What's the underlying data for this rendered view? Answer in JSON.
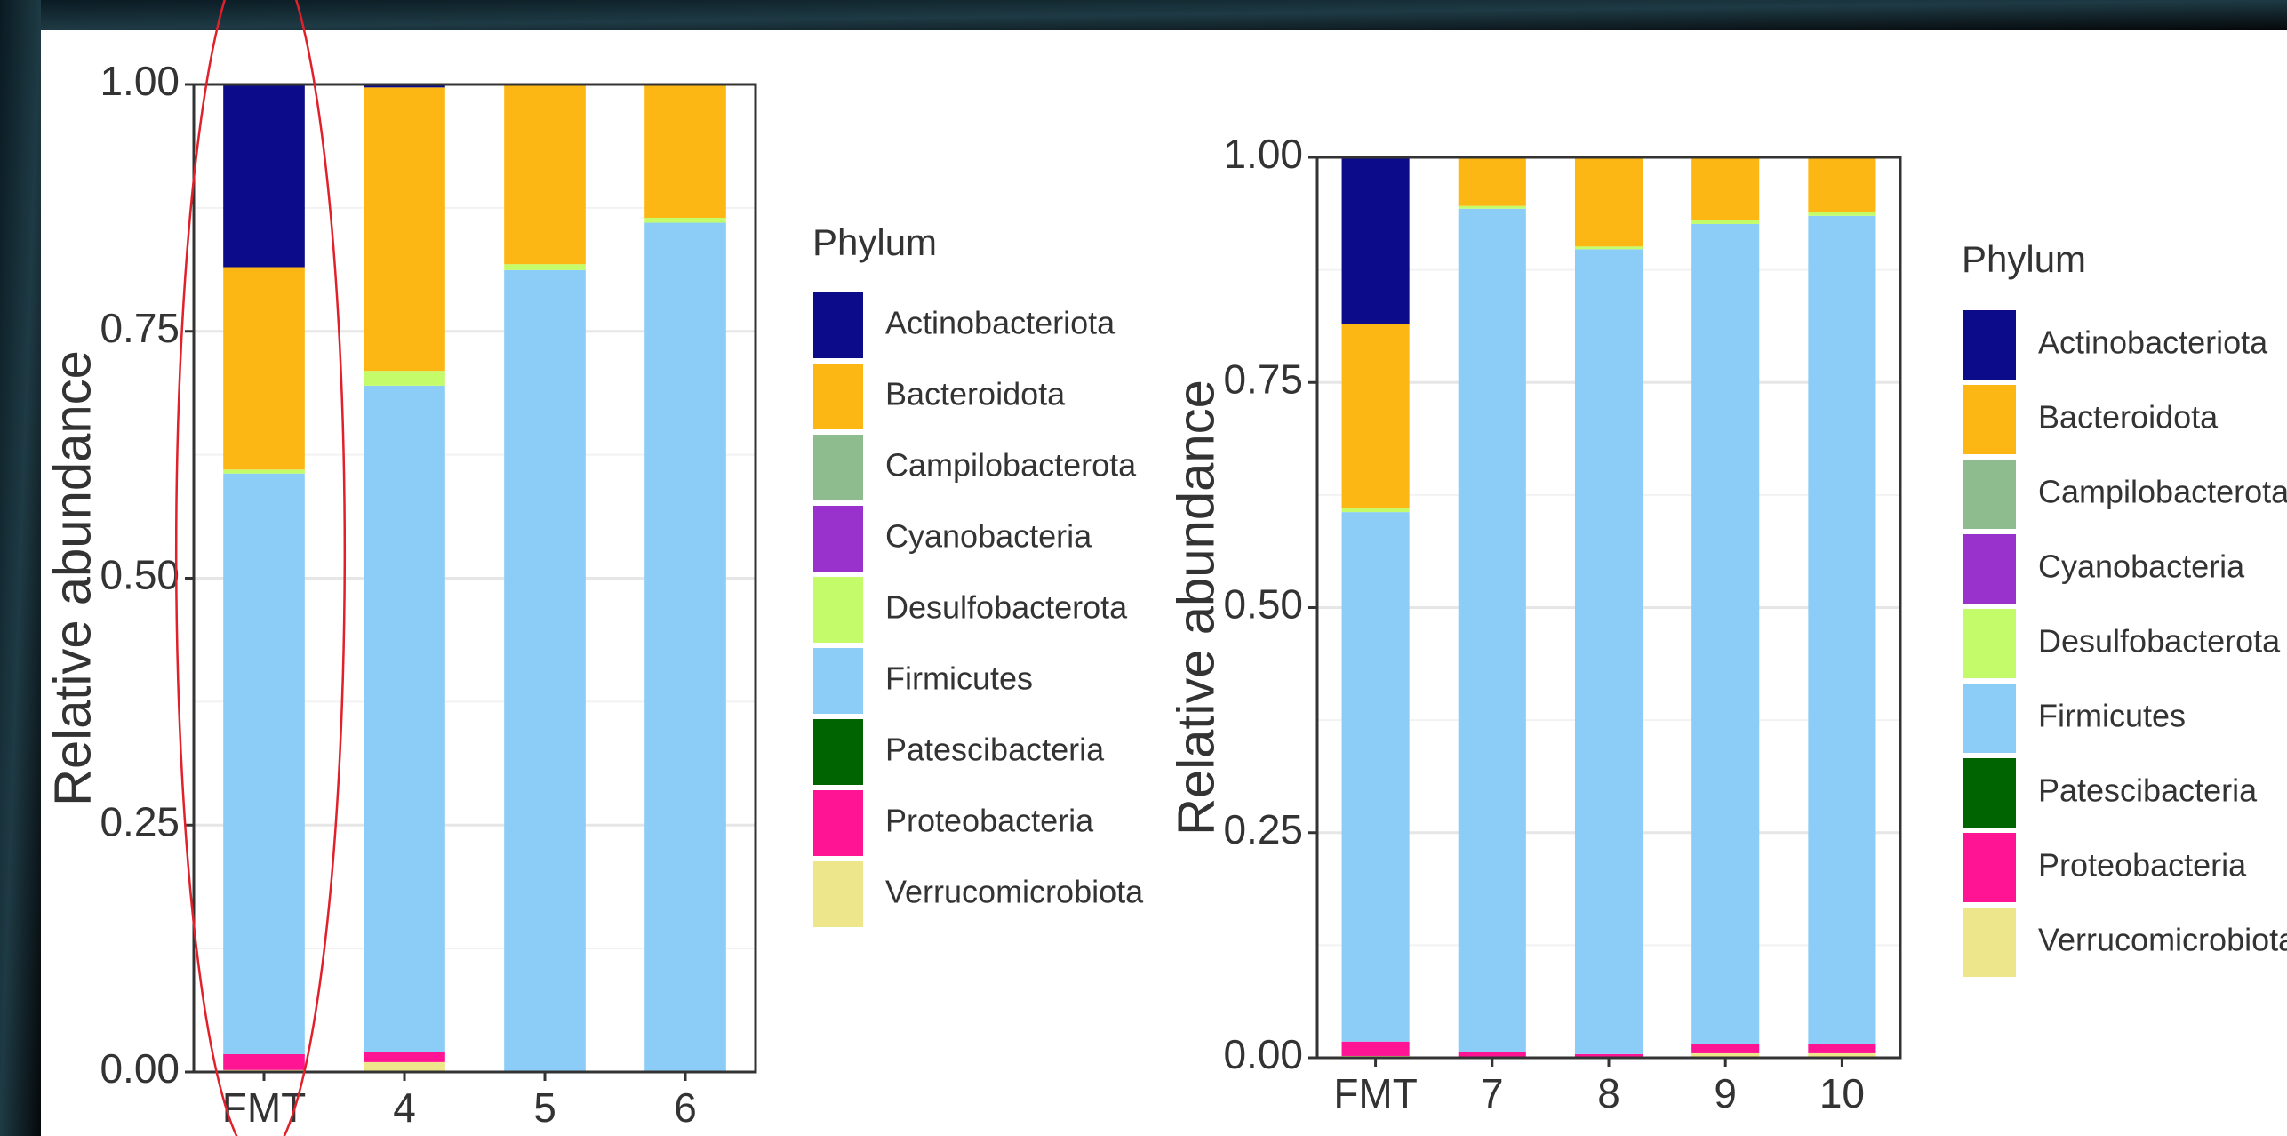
{
  "chart_data": [
    {
      "type": "bar",
      "stacked": true,
      "y_label": "Relative abundance",
      "legend_title": "Phylum",
      "grid": true,
      "categories": [
        "FMT",
        "4",
        "5",
        "6"
      ],
      "ylim": [
        0,
        1
      ],
      "yticks": [
        {
          "value": 0,
          "label": "0.00"
        },
        {
          "value": 0.25,
          "label": "0.25"
        },
        {
          "value": 0.5,
          "label": "0.50"
        },
        {
          "value": 0.75,
          "label": "0.75"
        },
        {
          "value": 1,
          "label": "1.00"
        }
      ],
      "series": [
        {
          "name": "Actinobacteriota",
          "color": "#0c0c8a",
          "values": [
            0.185,
            0.003,
            0,
            0
          ]
        },
        {
          "name": "Bacteroidota",
          "color": "#fdb714",
          "values": [
            0.205,
            0.287,
            0.182,
            0.135
          ]
        },
        {
          "name": "Campilobacterota",
          "color": "#8fbc8f",
          "values": [
            0,
            0,
            0,
            0
          ]
        },
        {
          "name": "Cyanobacteria",
          "color": "#9932cc",
          "values": [
            0,
            0,
            0,
            0
          ]
        },
        {
          "name": "Desulfobacterota",
          "color": "#c3fb6a",
          "values": [
            0.004,
            0.015,
            0.006,
            0.005
          ]
        },
        {
          "name": "Firmicutes",
          "color": "#8ccdf7",
          "values": [
            0.588,
            0.675,
            0.812,
            0.86
          ]
        },
        {
          "name": "Patescibacteria",
          "color": "#006400",
          "values": [
            0,
            0,
            0,
            0
          ]
        },
        {
          "name": "Proteobacteria",
          "color": "#ff1493",
          "values": [
            0.016,
            0.01,
            0,
            0
          ]
        },
        {
          "name": "Verrucomicrobiota",
          "color": "#ede68a",
          "values": [
            0.002,
            0.01,
            0,
            0
          ]
        }
      ]
    },
    {
      "type": "bar",
      "stacked": true,
      "y_label": "Relative abundance",
      "legend_title": "Phylum",
      "grid": true,
      "categories": [
        "FMT",
        "7",
        "8",
        "9",
        "10"
      ],
      "ylim": [
        0,
        1
      ],
      "yticks": [
        {
          "value": 0,
          "label": "0.00"
        },
        {
          "value": 0.25,
          "label": "0.25"
        },
        {
          "value": 0.5,
          "label": "0.50"
        },
        {
          "value": 0.75,
          "label": "0.75"
        },
        {
          "value": 1,
          "label": "1.00"
        }
      ],
      "series": [
        {
          "name": "Actinobacteriota",
          "color": "#0c0c8a",
          "values": [
            0.185,
            0,
            0,
            0,
            0
          ]
        },
        {
          "name": "Bacteroidota",
          "color": "#fdb714",
          "values": [
            0.205,
            0.054,
            0.099,
            0.07,
            0.061
          ]
        },
        {
          "name": "Campilobacterota",
          "color": "#8fbc8f",
          "values": [
            0,
            0,
            0,
            0,
            0
          ]
        },
        {
          "name": "Cyanobacteria",
          "color": "#9932cc",
          "values": [
            0,
            0,
            0,
            0,
            0
          ]
        },
        {
          "name": "Desulfobacterota",
          "color": "#c3fb6a",
          "values": [
            0.004,
            0.003,
            0.003,
            0.004,
            0.004
          ]
        },
        {
          "name": "Firmicutes",
          "color": "#8ccdf7",
          "values": [
            0.588,
            0.937,
            0.894,
            0.911,
            0.92
          ]
        },
        {
          "name": "Patescibacteria",
          "color": "#006400",
          "values": [
            0,
            0,
            0,
            0,
            0
          ]
        },
        {
          "name": "Proteobacteria",
          "color": "#ff1493",
          "values": [
            0.016,
            0.006,
            0.004,
            0.01,
            0.01
          ]
        },
        {
          "name": "Verrucomicrobiota",
          "color": "#ede68a",
          "values": [
            0.002,
            0,
            0,
            0.005,
            0.005
          ]
        }
      ]
    }
  ]
}
